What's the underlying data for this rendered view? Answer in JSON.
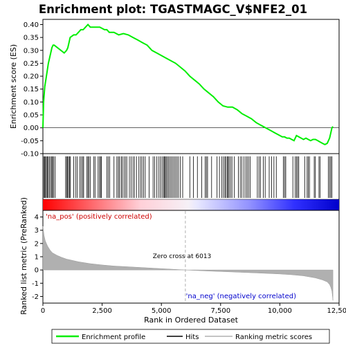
{
  "chart_data": {
    "type": "line",
    "title": "Enrichment plot: TGASTMAGC_V$NFE2_01",
    "xlabel": "Rank in Ordered Dataset",
    "ylabel_top": "Enrichment score (ES)",
    "ylabel_bottom": "Ranked list metric (PreRanked)",
    "x_range": [
      0,
      12500
    ],
    "es_ylim": [
      -0.1,
      0.42
    ],
    "metric_ylim": [
      -2.5,
      4.5
    ],
    "x_ticks": [
      0,
      2500,
      5000,
      7500,
      10000,
      12500
    ],
    "x_tick_labels": [
      "0",
      "2,500",
      "5,000",
      "7,500",
      "10,000",
      "12,500"
    ],
    "es_ticks": [
      -0.1,
      -0.05,
      0.0,
      0.05,
      0.1,
      0.15,
      0.2,
      0.25,
      0.3,
      0.35,
      0.4
    ],
    "es_tick_labels": [
      "-0.10",
      "-0.05",
      "0.00",
      "0.05",
      "0.10",
      "0.15",
      "0.20",
      "0.25",
      "0.30",
      "0.35",
      "0.40"
    ],
    "metric_ticks": [
      -2,
      -1,
      0,
      1,
      2,
      3,
      4
    ],
    "metric_tick_labels": [
      "-2",
      "-1",
      "0",
      "1",
      "2",
      "3",
      "4"
    ],
    "zero_cross": 6013,
    "zero_cross_label": "Zero cross at 6013",
    "pos_label": "'na_pos' (positively correlated)",
    "neg_label": "'na_neg' (negatively correlated)",
    "n_genes": 12240,
    "enrichment_profile": {
      "x": [
        0,
        30,
        80,
        130,
        180,
        230,
        280,
        330,
        380,
        430,
        480,
        900,
        1000,
        1050,
        1100,
        1150,
        1300,
        1400,
        1500,
        1600,
        1700,
        1800,
        1900,
        2000,
        2200,
        2400,
        2600,
        2700,
        2800,
        3000,
        3200,
        3400,
        3600,
        3800,
        4000,
        4200,
        4400,
        4600,
        4800,
        5000,
        5200,
        5400,
        5600,
        5800,
        6000,
        6200,
        6400,
        6600,
        6800,
        7000,
        7200,
        7400,
        7600,
        7800,
        8000,
        8200,
        8400,
        8600,
        8800,
        9000,
        9200,
        9400,
        9600,
        9800,
        10000,
        10100,
        10200,
        10300,
        10400,
        10500,
        10600,
        10700,
        10800,
        10900,
        11000,
        11100,
        11200,
        11300,
        11400,
        11500,
        11600,
        11700,
        11800,
        11900,
        12000,
        12100,
        12150,
        12200,
        12240
      ],
      "y": [
        0.0,
        0.1,
        0.16,
        0.19,
        0.22,
        0.25,
        0.27,
        0.29,
        0.31,
        0.32,
        0.32,
        0.29,
        0.3,
        0.31,
        0.33,
        0.35,
        0.36,
        0.36,
        0.37,
        0.38,
        0.38,
        0.39,
        0.4,
        0.39,
        0.39,
        0.39,
        0.38,
        0.38,
        0.37,
        0.37,
        0.36,
        0.365,
        0.36,
        0.35,
        0.34,
        0.33,
        0.32,
        0.3,
        0.29,
        0.28,
        0.27,
        0.26,
        0.25,
        0.235,
        0.22,
        0.2,
        0.185,
        0.17,
        0.15,
        0.135,
        0.12,
        0.1,
        0.085,
        0.08,
        0.08,
        0.07,
        0.055,
        0.045,
        0.035,
        0.02,
        0.01,
        0.0,
        -0.01,
        -0.02,
        -0.03,
        -0.035,
        -0.035,
        -0.04,
        -0.04,
        -0.045,
        -0.05,
        -0.03,
        -0.035,
        -0.04,
        -0.045,
        -0.04,
        -0.045,
        -0.05,
        -0.045,
        -0.045,
        -0.05,
        -0.055,
        -0.06,
        -0.065,
        -0.06,
        -0.04,
        -0.02,
        0.0,
        0.005
      ]
    },
    "ranked_metric": {
      "x": [
        0,
        50,
        100,
        200,
        300,
        400,
        600,
        800,
        1000,
        1500,
        2000,
        2500,
        3000,
        4000,
        5000,
        6013,
        7000,
        8000,
        9000,
        10000,
        10500,
        11000,
        11500,
        11800,
        12000,
        12100,
        12150,
        12200,
        12240
      ],
      "y": [
        3.3,
        2.6,
        2.2,
        1.8,
        1.5,
        1.3,
        1.1,
        0.95,
        0.82,
        0.62,
        0.48,
        0.38,
        0.3,
        0.2,
        0.1,
        0.0,
        -0.08,
        -0.15,
        -0.22,
        -0.3,
        -0.36,
        -0.44,
        -0.6,
        -0.75,
        -0.9,
        -1.1,
        -1.3,
        -1.6,
        -2.3
      ]
    },
    "hits": [
      40,
      80,
      110,
      150,
      190,
      230,
      280,
      330,
      380,
      410,
      460,
      520,
      960,
      1000,
      1040,
      1080,
      1120,
      1160,
      1300,
      1380,
      1450,
      1560,
      1620,
      1680,
      1720,
      1860,
      1900,
      1940,
      2000,
      2150,
      2200,
      2330,
      2390,
      2430,
      2470,
      2700,
      2760,
      2820,
      3000,
      3120,
      3180,
      3230,
      3300,
      3350,
      3420,
      3480,
      3540,
      3650,
      3720,
      3800,
      3860,
      3950,
      4050,
      4120,
      4180,
      4250,
      4320,
      4480,
      4650,
      4720,
      4800,
      4880,
      4950,
      5020,
      5080,
      5120,
      5160,
      5200,
      5250,
      5300,
      5360,
      5420,
      5480,
      5540,
      5600,
      5660,
      5720,
      5800,
      5900,
      6200,
      6350,
      6520,
      6700,
      6850,
      6900,
      6950,
      7120,
      7350,
      7450,
      7550,
      7620,
      7680,
      7720,
      7780,
      7820,
      7860,
      7920,
      7980,
      8080,
      8250,
      8330,
      8400,
      8480,
      8560,
      8620,
      8680,
      8750,
      9050,
      9120,
      9180,
      9300,
      9380,
      9550,
      9650,
      9750,
      9850,
      10150,
      10200,
      10250,
      10550,
      10650,
      10700,
      10750,
      10800,
      11050,
      11150,
      11200,
      11250,
      11450,
      11500,
      11650,
      11700,
      12050,
      12100,
      12150,
      12200
    ],
    "colors": {
      "enrichment_line": "#00ee00",
      "hit_line": "#000000",
      "metric_fill": "#b0b0b0",
      "zero_line": "#b0b0b0",
      "pos_label": "#cc0000",
      "neg_label": "#0000cc",
      "heat_pos": "#ff0000",
      "heat_neg": "#0000ff"
    },
    "legend": {
      "placement": "bottom",
      "items": [
        {
          "label": "Enrichment profile",
          "type": "line-green"
        },
        {
          "label": "Hits",
          "type": "line-black"
        },
        {
          "label": "Ranking metric scores",
          "type": "line-gray"
        }
      ]
    }
  }
}
